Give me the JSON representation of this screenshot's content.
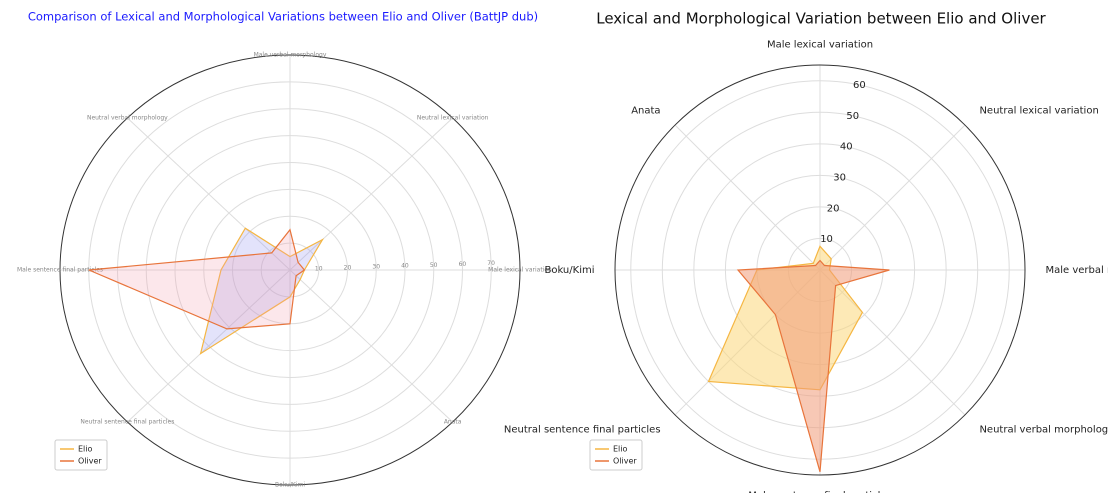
{
  "chart_data": [
    {
      "type": "radar",
      "title": "Comparison of Lexical and Morphological Variations between Elio and Oliver (BattJP dub)",
      "categories": [
        "Male lexical variation",
        "Neutral lexical variation",
        "Male verbal morphology",
        "Neutral verbal morphology",
        "Male sentence final particles",
        "Neutral sentence final particles",
        "Boku/Kimi",
        "Anata"
      ],
      "series": [
        {
          "name": "Elio",
          "color": "#f5b642",
          "fill": "#8f8ff0",
          "values": [
            5,
            16,
            5,
            22,
            24,
            44,
            10,
            5
          ]
        },
        {
          "name": "Oliver",
          "color": "#e8743b",
          "fill": "#f5a0b0",
          "values": [
            5,
            4,
            15,
            9,
            70,
            31,
            20,
            3
          ]
        }
      ],
      "ylim": [
        0,
        80
      ],
      "yticks": [
        10,
        20,
        30,
        40,
        50,
        60,
        70
      ],
      "direction": "counterclockwise",
      "grid": true,
      "legend": "lower left"
    },
    {
      "type": "radar",
      "title": "Lexical and Morphological Variation between Elio and Oliver",
      "categories": [
        "Male lexical variation",
        "Neutral lexical variation",
        "Male verbal morphology",
        "Neutral verbal morphology",
        "Male sentence final particles",
        "Neutral sentence final particles",
        "Boku/Kimi",
        "Anata"
      ],
      "series": [
        {
          "name": "Elio",
          "color": "#f5b642",
          "fill": "#fbd77a",
          "values": [
            7.5,
            5,
            3,
            19,
            38,
            50,
            20,
            3
          ]
        },
        {
          "name": "Oliver",
          "color": "#e8743b",
          "fill": "#f09a78",
          "values": [
            3,
            2,
            22,
            7,
            64,
            20,
            26,
            2
          ]
        }
      ],
      "ylim": [
        0,
        65
      ],
      "yticks": [
        10,
        20,
        30,
        40,
        50,
        60
      ],
      "direction": "clockwise",
      "grid": true,
      "legend": "lower left"
    }
  ]
}
